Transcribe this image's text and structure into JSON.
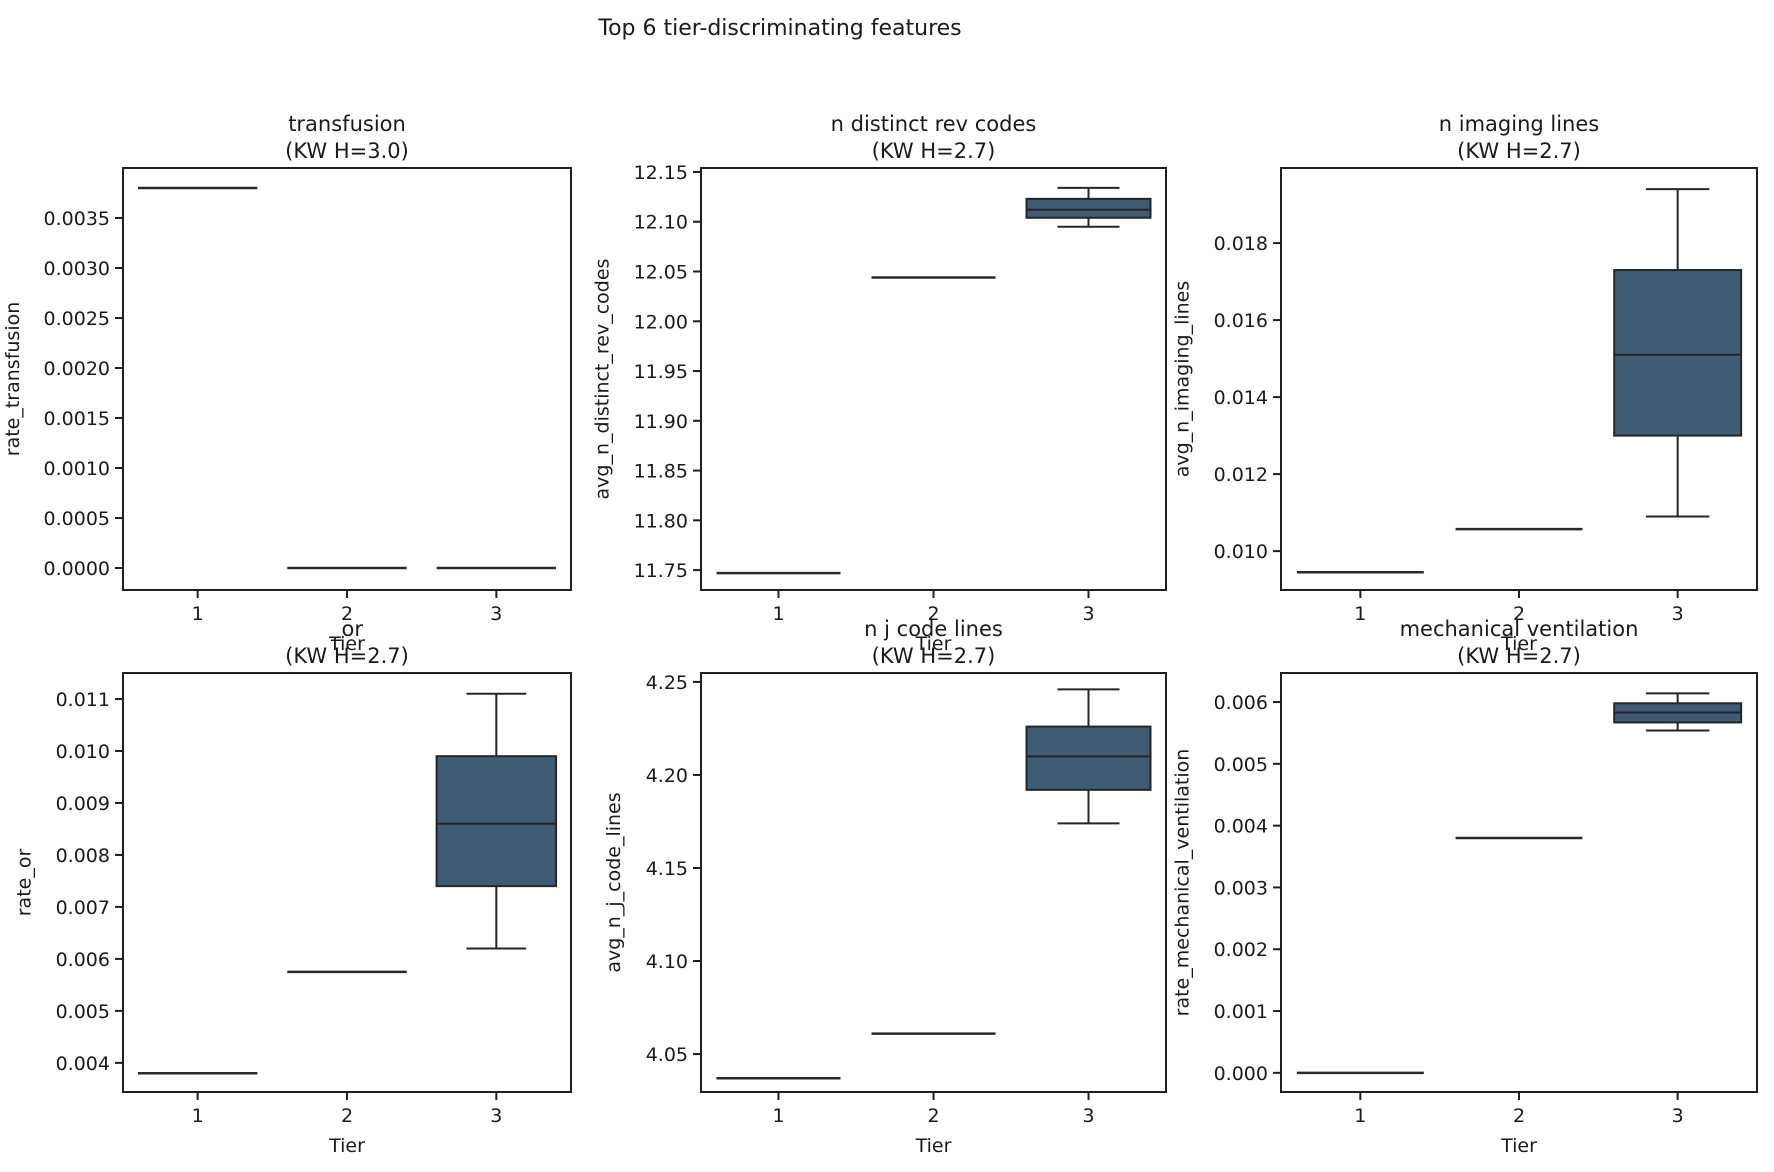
{
  "figure": {
    "suptitle": "Top 6 tier-discriminating features",
    "xlabel": "Tier",
    "categories": [
      "1",
      "2",
      "3"
    ],
    "colors": {
      "box_fill": "#3e5c74",
      "box_edge": "#262626",
      "flat_line": "#2a2a2a",
      "spine": "#1f1f1f",
      "text": "#1a1a1a",
      "background": "#ffffff"
    }
  },
  "chart_data": [
    {
      "type": "box",
      "title": "transfusion",
      "subtitle": "(KW H=3.0)",
      "ylabel": "rate_transfusion",
      "xlabel": "Tier",
      "categories": [
        "1",
        "2",
        "3"
      ],
      "yticks": [
        0.0,
        0.0005,
        0.001,
        0.0015,
        0.002,
        0.0025,
        0.003,
        0.0035
      ],
      "ytick_decimals": 4,
      "ylim": [
        -0.00022,
        0.004
      ],
      "boxes": [
        {
          "tier": "1",
          "flat": true,
          "med": 0.0038
        },
        {
          "tier": "2",
          "flat": true,
          "med": 0.0
        },
        {
          "tier": "3",
          "flat": true,
          "med": 0.0
        }
      ]
    },
    {
      "type": "box",
      "title": "n distinct rev codes",
      "subtitle": "(KW H=2.7)",
      "ylabel": "avg_n_distinct_rev_codes",
      "xlabel": "Tier",
      "categories": [
        "1",
        "2",
        "3"
      ],
      "yticks": [
        11.75,
        11.8,
        11.85,
        11.9,
        11.95,
        12.0,
        12.05,
        12.1,
        12.15
      ],
      "ytick_decimals": 2,
      "ylim": [
        11.73,
        12.154
      ],
      "boxes": [
        {
          "tier": "1",
          "flat": true,
          "med": 11.747
        },
        {
          "tier": "2",
          "flat": true,
          "med": 12.044
        },
        {
          "tier": "3",
          "flat": false,
          "whislo": 12.095,
          "q1": 12.104,
          "med": 12.112,
          "q3": 12.123,
          "whishi": 12.134
        }
      ]
    },
    {
      "type": "box",
      "title": "n imaging lines",
      "subtitle": "(KW H=2.7)",
      "ylabel": "avg_n_imaging_lines",
      "xlabel": "Tier",
      "categories": [
        "1",
        "2",
        "3"
      ],
      "yticks": [
        0.01,
        0.012,
        0.014,
        0.016,
        0.018
      ],
      "ytick_decimals": 3,
      "ylim": [
        0.00899,
        0.01995
      ],
      "boxes": [
        {
          "tier": "1",
          "flat": true,
          "med": 0.00945
        },
        {
          "tier": "2",
          "flat": true,
          "med": 0.01057
        },
        {
          "tier": "3",
          "flat": false,
          "whislo": 0.0109,
          "q1": 0.013,
          "med": 0.0151,
          "q3": 0.0173,
          "whishi": 0.0194
        }
      ]
    },
    {
      "type": "box",
      "title": "_or",
      "subtitle": "(KW H=2.7)",
      "ylabel": "rate_or",
      "xlabel": "Tier",
      "categories": [
        "1",
        "2",
        "3"
      ],
      "yticks": [
        0.004,
        0.005,
        0.006,
        0.007,
        0.008,
        0.009,
        0.01,
        0.011
      ],
      "ytick_decimals": 3,
      "ylim": [
        0.00344,
        0.0115
      ],
      "boxes": [
        {
          "tier": "1",
          "flat": true,
          "med": 0.0038
        },
        {
          "tier": "2",
          "flat": true,
          "med": 0.00575
        },
        {
          "tier": "3",
          "flat": false,
          "whislo": 0.0062,
          "q1": 0.0074,
          "med": 0.0086,
          "q3": 0.0099,
          "whishi": 0.0111
        }
      ]
    },
    {
      "type": "box",
      "title": "n j code lines",
      "subtitle": "(KW H=2.7)",
      "ylabel": "avg_n_j_code_lines",
      "xlabel": "Tier",
      "categories": [
        "1",
        "2",
        "3"
      ],
      "yticks": [
        4.05,
        4.1,
        4.15,
        4.2,
        4.25
      ],
      "ytick_decimals": 2,
      "ylim": [
        4.0296,
        4.2548
      ],
      "boxes": [
        {
          "tier": "1",
          "flat": true,
          "med": 4.037
        },
        {
          "tier": "2",
          "flat": true,
          "med": 4.061
        },
        {
          "tier": "3",
          "flat": false,
          "whislo": 4.174,
          "q1": 4.192,
          "med": 4.21,
          "q3": 4.226,
          "whishi": 4.246
        }
      ]
    },
    {
      "type": "box",
      "title": "mechanical ventilation",
      "subtitle": "(KW H=2.7)",
      "ylabel": "rate_mechanical_ventilation",
      "xlabel": "Tier",
      "categories": [
        "1",
        "2",
        "3"
      ],
      "yticks": [
        0.0,
        0.001,
        0.002,
        0.003,
        0.004,
        0.005,
        0.006
      ],
      "ytick_decimals": 3,
      "ylim": [
        -0.00031,
        0.00647
      ],
      "boxes": [
        {
          "tier": "1",
          "flat": true,
          "med": 0.0
        },
        {
          "tier": "2",
          "flat": true,
          "med": 0.0038
        },
        {
          "tier": "3",
          "flat": false,
          "whislo": 0.00554,
          "q1": 0.00567,
          "med": 0.00583,
          "q3": 0.00598,
          "whishi": 0.00614
        }
      ]
    }
  ]
}
